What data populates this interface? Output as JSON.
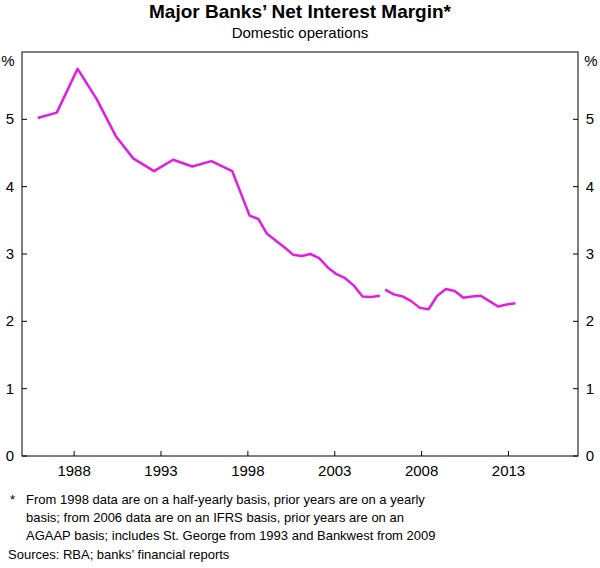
{
  "chart_data": {
    "type": "line",
    "title": "Major Banks’ Net Interest Margin*",
    "subtitle": "Domestic operations",
    "ylabel": "%",
    "y2label": "%",
    "x": [
      1985.9,
      1987.0,
      1988.2,
      1989.3,
      1990.4,
      1991.4,
      1992.6,
      1993.7,
      1994.8,
      1995.9,
      1997.1,
      1997.6,
      1998.1,
      1998.6,
      1999.1,
      1999.6,
      2000.1,
      2000.6,
      2001.1,
      2001.6,
      2002.1,
      2002.6,
      2003.1,
      2003.6,
      2004.1,
      2004.6,
      2005.1,
      2005.6,
      2005.75,
      2005.9,
      2006.4,
      2006.9,
      2007.4,
      2007.9,
      2008.4,
      2008.9,
      2009.4,
      2009.9,
      2010.4,
      2010.9,
      2011.4,
      2011.9,
      2012.4,
      2012.9,
      2013.4
    ],
    "series": [
      {
        "name": "Net interest margin",
        "color": "#e21de2",
        "values": [
          5.02,
          5.1,
          5.75,
          5.3,
          4.75,
          4.42,
          4.23,
          4.4,
          4.3,
          4.38,
          4.23,
          3.9,
          3.57,
          3.52,
          3.3,
          3.2,
          3.1,
          2.99,
          2.97,
          3.0,
          2.94,
          2.8,
          2.7,
          2.64,
          2.53,
          2.37,
          2.36,
          2.38,
          null,
          2.47,
          2.4,
          2.37,
          2.3,
          2.2,
          2.18,
          2.38,
          2.48,
          2.45,
          2.35,
          2.37,
          2.38,
          2.3,
          2.22,
          2.25,
          2.27
        ]
      }
    ],
    "xlim": [
      1985,
      2017
    ],
    "xticks": [
      1988,
      1993,
      1998,
      2003,
      2008,
      2013
    ],
    "ylim": [
      0,
      6
    ],
    "yticks": [
      0,
      1,
      2,
      3,
      4,
      5
    ],
    "y2lim": [
      0,
      6
    ],
    "y2ticks": [
      0,
      1,
      2,
      3,
      4,
      5
    ],
    "grid": false,
    "footnote": {
      "marker": "*",
      "lines": [
        "From 1998 data are on a half-yearly basis, prior years are on a yearly",
        "basis; from 2006 data are on an IFRS basis, prior years are on an",
        "AGAAP basis; includes St. George from 1993 and Bankwest from 2009"
      ]
    },
    "source": "Sources: RBA; banks’ financial reports"
  }
}
